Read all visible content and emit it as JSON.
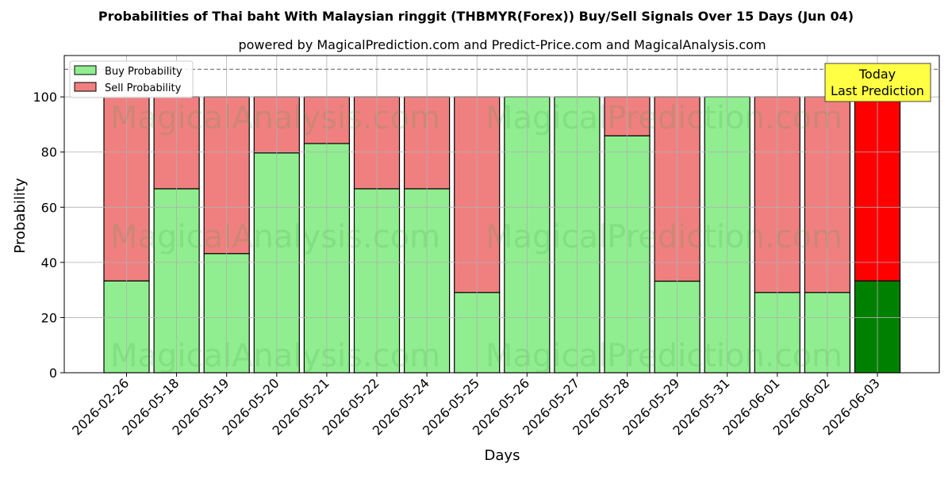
{
  "chart_data": {
    "type": "bar",
    "title": "Probabilities of Thai baht With Malaysian ringgit (THBMYR(Forex)) Buy/Sell Signals Over 15 Days (Jun 04)",
    "subtitle": "powered by MagicalPrediction.com and Predict-Price.com and MagicalAnalysis.com",
    "xlabel": "Days",
    "ylabel": "Probability",
    "ylim": [
      0,
      115
    ],
    "yticks": [
      0,
      20,
      40,
      60,
      80,
      100
    ],
    "grid": true,
    "stacked": true,
    "legend_position": "top-left",
    "categories": [
      "2026-02-26",
      "2026-05-18",
      "2026-05-19",
      "2026-05-20",
      "2026-05-21",
      "2026-05-22",
      "2026-05-24",
      "2026-05-25",
      "2026-05-26",
      "2026-05-27",
      "2026-05-28",
      "2026-05-29",
      "2026-05-31",
      "2026-06-01",
      "2026-06-02",
      "2026-06-03"
    ],
    "series": [
      {
        "name": "Buy Probability",
        "color": "#90ee90",
        "values": [
          33.3,
          66.7,
          43.2,
          79.7,
          83.1,
          66.7,
          66.7,
          29.1,
          100,
          100,
          85.9,
          33.2,
          100,
          29.1,
          29.1,
          33.3
        ]
      },
      {
        "name": "Sell Probability",
        "color": "#f08080",
        "values": [
          66.7,
          33.3,
          56.8,
          20.3,
          16.9,
          33.3,
          33.3,
          70.9,
          0,
          0,
          14.1,
          66.8,
          0,
          70.9,
          70.9,
          66.7
        ]
      }
    ],
    "highlight": {
      "index": 15,
      "buy_color": "#008000",
      "sell_color": "#ff0000"
    },
    "reference_line": 110,
    "annotation": {
      "lines": [
        "Today",
        "Last Prediction"
      ],
      "color": "#ffff44"
    },
    "watermarks": [
      "MagicalAnalysis.com",
      "MagicalPrediction.com"
    ]
  }
}
